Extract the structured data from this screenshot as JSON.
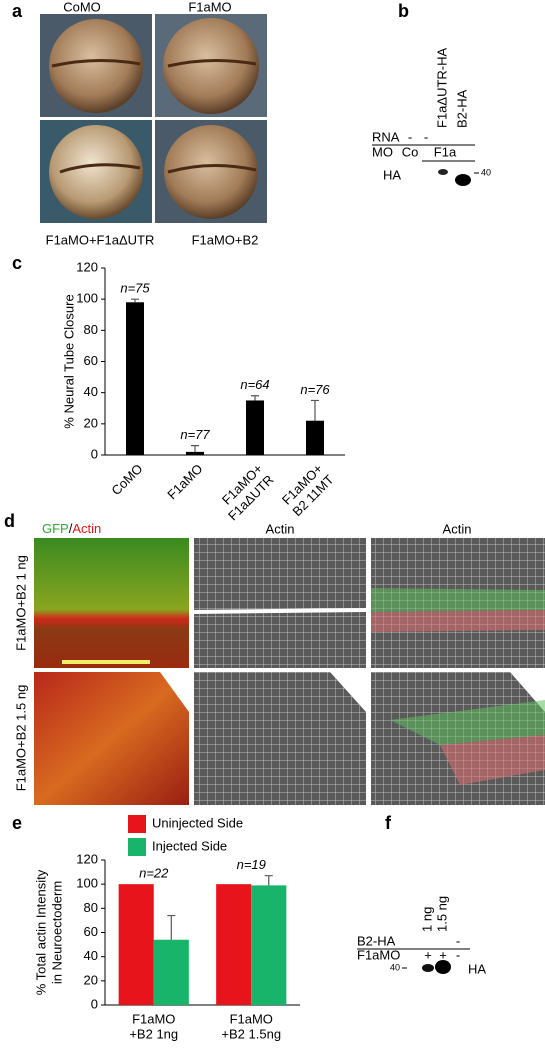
{
  "panel_labels": [
    "a",
    "b",
    "c",
    "d",
    "e",
    "f"
  ],
  "panel_a": {
    "labels": [
      "CoMO",
      "F1aMO",
      "F1aMO+F1aΔUTR",
      "F1aMO+B2"
    ]
  },
  "panel_b": {
    "lanes": [
      "F1aΔUTR-HA",
      "B2-HA"
    ],
    "rna_label": "RNA",
    "rna": [
      "-",
      "-"
    ],
    "mo_label": "MO",
    "mo": [
      "Co",
      "F1a"
    ],
    "band": "HA",
    "marker": "40"
  },
  "panel_d": {
    "headers": [
      [
        "GFP",
        "/",
        "Actin"
      ],
      [
        "Actin"
      ],
      [
        "Actin"
      ]
    ],
    "rows": [
      "F1aMO+B2 1 ng",
      "F1aMO+B2 1.5 ng"
    ]
  },
  "panel_f": {
    "lanes": [
      "1 ng",
      "1.5 ng"
    ],
    "rows": [
      "B2-HA",
      "F1aMO"
    ],
    "b2": [
      "-"
    ],
    "mo": [
      "+",
      "+",
      "-"
    ],
    "marker": "40",
    "band": "HA"
  },
  "chart_data": [
    {
      "type": "bar",
      "ylabel": [
        "% Neural Tube Closure"
      ],
      "categories": [
        [
          "CoMO"
        ],
        [
          "F1aMO"
        ],
        [
          "F1aMO+",
          "F1aΔUTR"
        ],
        [
          "F1aMO+",
          "B2 11MT"
        ]
      ],
      "values": [
        98,
        2,
        35,
        22
      ],
      "errors": [
        2,
        4,
        3,
        13
      ],
      "color": "#000000",
      "annotations": [
        "n=75",
        "n=77",
        "n=64",
        "n=76"
      ],
      "ylim": [
        0,
        120
      ],
      "yticks": [
        0,
        20,
        40,
        60,
        80,
        100,
        120
      ]
    },
    {
      "type": "bar",
      "ylabel": [
        "% Total actin Intensity",
        "in Neuroectoderm"
      ],
      "categories": [
        [
          "F1aMO",
          "+B2 1ng"
        ],
        [
          "F1aMO",
          "+B2 1.5ng"
        ]
      ],
      "series": [
        {
          "name": "Uninjected Side",
          "color": "#e8141c",
          "values": [
            100,
            100
          ]
        },
        {
          "name": "Injected Side",
          "color": "#18b46a",
          "values": [
            54,
            99
          ],
          "errors": [
            20,
            8
          ]
        }
      ],
      "annotations": [
        "n=22",
        "n=19"
      ],
      "legend": "top",
      "ylim": [
        0,
        120
      ],
      "yticks": [
        0,
        20,
        40,
        60,
        80,
        100,
        120
      ]
    }
  ]
}
